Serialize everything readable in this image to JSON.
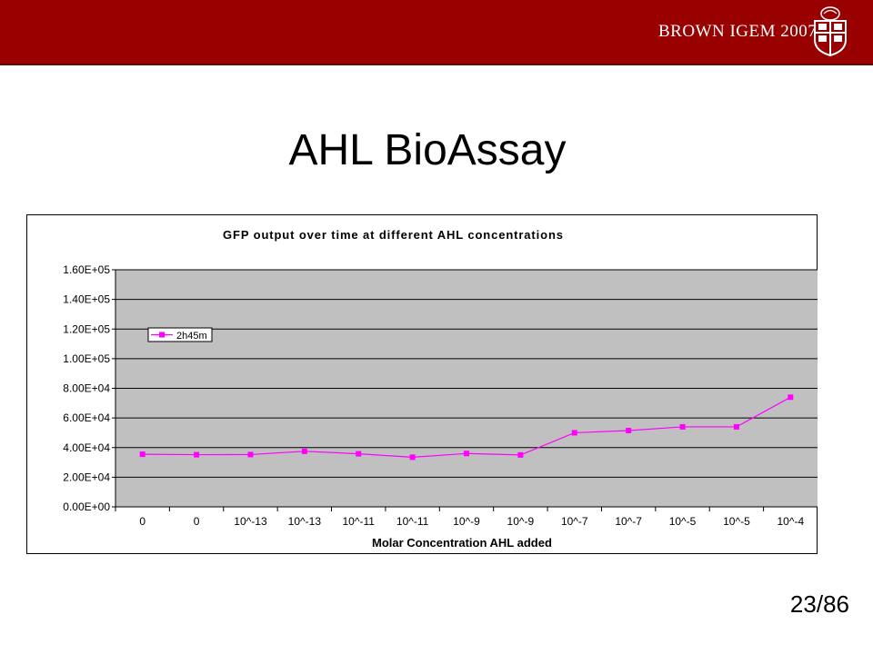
{
  "header": {
    "brand": "BROWN IGEM 2007",
    "logo_icon": "brown-university-shield-icon",
    "bar_color": "#990000"
  },
  "slide": {
    "title": "AHL BioAssay",
    "page_number": "23/86"
  },
  "chart_data": {
    "type": "line",
    "title": "GFP output over time at different AHL concentrations",
    "xlabel": "Molar Concentration AHL added",
    "ylabel": "",
    "categories": [
      "0",
      "0",
      "10^-13",
      "10^-13",
      "10^-11",
      "10^-11",
      "10^-9",
      "10^-9",
      "10^-7",
      "10^-7",
      "10^-5",
      "10^-5",
      "10^-4"
    ],
    "y_tick_labels": [
      "0.00E+00",
      "2.00E+04",
      "4.00E+04",
      "6.00E+04",
      "8.00E+04",
      "1.00E+05",
      "1.20E+05",
      "1.40E+05",
      "1.60E+05"
    ],
    "ylim": [
      0,
      160000
    ],
    "y_step": 20000,
    "grid": true,
    "legend_position": "upper-left",
    "series": [
      {
        "name": "2h45m",
        "color": "#ff00ff",
        "values": [
          35500,
          35200,
          35300,
          37500,
          35800,
          33500,
          36000,
          35000,
          50000,
          51500,
          54000,
          54000,
          74000
        ]
      }
    ]
  }
}
